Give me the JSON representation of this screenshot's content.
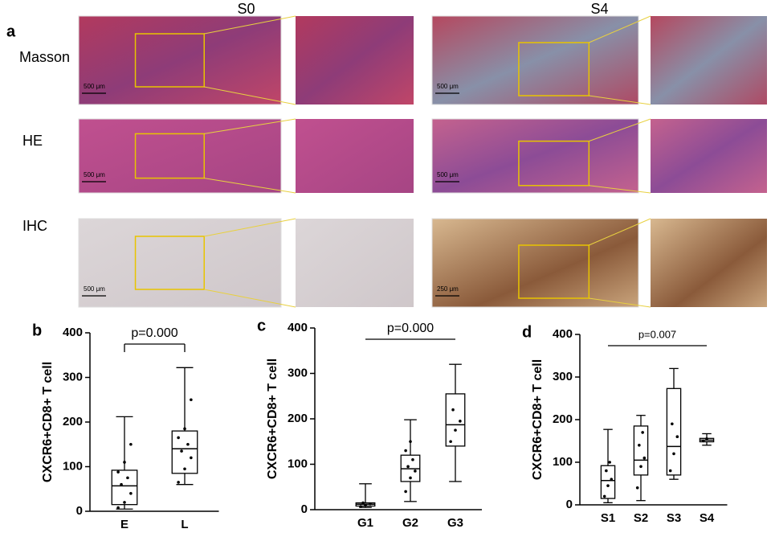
{
  "panel_a": {
    "label": "a",
    "columns": [
      "S0",
      "S4"
    ],
    "rows": [
      "Masson",
      "HE",
      "IHC"
    ],
    "scale_bars": [
      [
        "500 μm",
        "500 μm"
      ],
      [
        "500 μm",
        "500 μm"
      ],
      [
        "500 μm",
        "250 μm"
      ]
    ]
  },
  "chart_data": [
    {
      "type": "box",
      "panel": "b",
      "ylabel": "CXCR6+CD8+ T cell",
      "annotation": "p=0.000",
      "categories": [
        "E",
        "L"
      ],
      "ylim": [
        0,
        400
      ],
      "yticks": [
        0,
        100,
        200,
        300,
        400
      ],
      "boxes": [
        {
          "min": 5,
          "q1": 15,
          "median": 57,
          "q3": 92,
          "max": 212,
          "points": [
            8,
            20,
            40,
            60,
            75,
            88,
            110,
            150
          ]
        },
        {
          "min": 60,
          "q1": 85,
          "median": 140,
          "q3": 180,
          "max": 322,
          "points": [
            65,
            95,
            120,
            135,
            150,
            165,
            185,
            250
          ]
        }
      ]
    },
    {
      "type": "box",
      "panel": "c",
      "ylabel": "CXCR6+CD8+ T cell",
      "annotation": "p=0.000",
      "categories": [
        "G1",
        "G2",
        "G3"
      ],
      "ylim": [
        0,
        400
      ],
      "yticks": [
        0,
        100,
        200,
        300,
        400
      ],
      "boxes": [
        {
          "min": 5,
          "q1": 8,
          "median": 12,
          "q3": 15,
          "max": 57,
          "points": [
            7,
            10,
            13,
            15
          ]
        },
        {
          "min": 18,
          "q1": 62,
          "median": 90,
          "q3": 120,
          "max": 198,
          "points": [
            40,
            70,
            85,
            95,
            110,
            130,
            150
          ]
        },
        {
          "min": 62,
          "q1": 140,
          "median": 187,
          "q3": 255,
          "max": 320,
          "points": [
            150,
            175,
            195,
            220
          ]
        }
      ]
    },
    {
      "type": "box",
      "panel": "d",
      "ylabel": "CXCR6+CD8+ T cell",
      "annotation": "p=0.007",
      "categories": [
        "S1",
        "S2",
        "S3",
        "S4"
      ],
      "ylim": [
        0,
        400
      ],
      "yticks": [
        0,
        100,
        200,
        300,
        400
      ],
      "boxes": [
        {
          "min": 5,
          "q1": 15,
          "median": 57,
          "q3": 92,
          "max": 177,
          "points": [
            20,
            45,
            60,
            80,
            100
          ]
        },
        {
          "min": 10,
          "q1": 70,
          "median": 105,
          "q3": 185,
          "max": 210,
          "points": [
            40,
            90,
            110,
            140,
            170
          ]
        },
        {
          "min": 60,
          "q1": 70,
          "median": 137,
          "q3": 273,
          "max": 320,
          "points": [
            80,
            120,
            160,
            190
          ]
        },
        {
          "min": 140,
          "q1": 148,
          "median": 152,
          "q3": 156,
          "max": 167,
          "points": [
            150,
            155
          ]
        }
      ]
    }
  ]
}
